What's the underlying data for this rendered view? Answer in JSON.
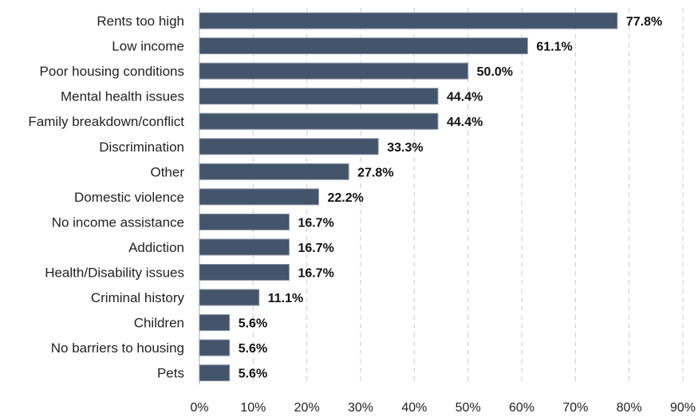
{
  "chart_data": {
    "type": "bar",
    "orientation": "horizontal",
    "categories": [
      "Rents too high",
      "Low income",
      "Poor housing conditions",
      "Mental health issues",
      "Family breakdown/conflict",
      "Discrimination",
      "Other",
      "Domestic violence",
      "No income assistance",
      "Addiction",
      "Health/Disability issues",
      "Criminal history",
      "Children",
      "No barriers to housing",
      "Pets"
    ],
    "values": [
      77.8,
      61.1,
      50.0,
      44.4,
      44.4,
      33.3,
      27.8,
      22.2,
      16.7,
      16.7,
      16.7,
      11.1,
      5.6,
      5.6,
      5.6
    ],
    "data_labels": [
      "77.8%",
      "61.1%",
      "50.0%",
      "44.4%",
      "44.4%",
      "33.3%",
      "27.8%",
      "22.2%",
      "16.7%",
      "16.7%",
      "16.7%",
      "11.1%",
      "5.6%",
      "5.6%",
      "5.6%"
    ],
    "xlim": [
      0,
      90
    ],
    "x_ticks": [
      "0%",
      "10%",
      "20%",
      "30%",
      "40%",
      "50%",
      "60%",
      "70%",
      "80%",
      "90%"
    ],
    "x_tick_values": [
      0,
      10,
      20,
      30,
      40,
      50,
      60,
      70,
      80,
      90
    ],
    "title": "",
    "xlabel": "",
    "ylabel": "",
    "grid": "vertical dashed",
    "legend": "none",
    "colors": {
      "bar_fill": "#44546a",
      "bar_stroke": "#8a96a6",
      "grid": "#c8c8c8",
      "axis": "#a6a6a6"
    }
  }
}
